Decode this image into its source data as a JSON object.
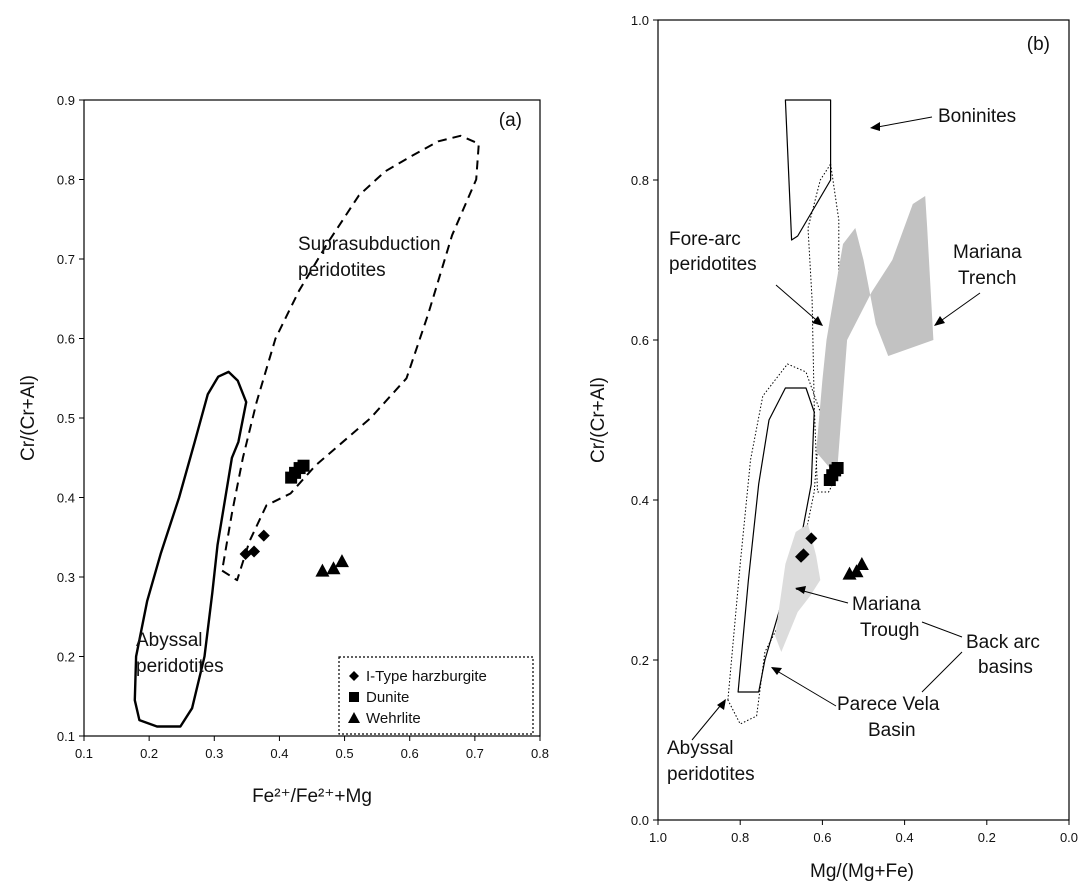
{
  "chart_data": [
    {
      "id": "a",
      "type": "scatter",
      "panel_label": "(a)",
      "xlabel": "Fe²⁺/Fe²⁺+Mg",
      "ylabel": "Cr/(Cr+Al)",
      "xlim": [
        0.1,
        0.8
      ],
      "ylim": [
        0.1,
        0.9
      ],
      "x_ticks": [
        "0.1",
        "0.2",
        "0.3",
        "0.4",
        "0.5",
        "0.6",
        "0.7",
        "0.8"
      ],
      "y_ticks": [
        "0.1",
        "0.2",
        "0.3",
        "0.4",
        "0.5",
        "0.6",
        "0.7",
        "0.8",
        "0.9"
      ],
      "grid": false,
      "legend_position": "bottom-right",
      "series": [
        {
          "name": "I-Type harzburgite",
          "marker": "diamond",
          "points": [
            [
              0.348,
              0.329
            ],
            [
              0.361,
              0.332
            ],
            [
              0.376,
              0.352
            ]
          ]
        },
        {
          "name": "Dunite",
          "marker": "square",
          "points": [
            [
              0.418,
              0.425
            ],
            [
              0.424,
              0.431
            ],
            [
              0.431,
              0.437
            ],
            [
              0.437,
              0.44
            ]
          ]
        },
        {
          "name": "Wehrlite",
          "marker": "triangle",
          "points": [
            [
              0.466,
              0.308
            ],
            [
              0.483,
              0.311
            ],
            [
              0.496,
              0.32
            ]
          ]
        }
      ],
      "fields": [
        {
          "label": "Abyssal peridotites",
          "style": "solid",
          "outline": [
            [
              0.306,
              0.552
            ],
            [
              0.322,
              0.558
            ],
            [
              0.336,
              0.547
            ],
            [
              0.349,
              0.52
            ],
            [
              0.337,
              0.47
            ],
            [
              0.327,
              0.45
            ],
            [
              0.305,
              0.34
            ],
            [
              0.297,
              0.28
            ],
            [
              0.285,
              0.2
            ],
            [
              0.266,
              0.135
            ],
            [
              0.248,
              0.112
            ],
            [
              0.212,
              0.112
            ],
            [
              0.185,
              0.12
            ],
            [
              0.178,
              0.145
            ],
            [
              0.18,
              0.2
            ],
            [
              0.197,
              0.27
            ],
            [
              0.218,
              0.33
            ],
            [
              0.246,
              0.4
            ],
            [
              0.27,
              0.47
            ],
            [
              0.29,
              0.53
            ],
            [
              0.306,
              0.552
            ]
          ]
        },
        {
          "label": "Suprasubduction peridotites",
          "style": "dashed",
          "outline": [
            [
              0.312,
              0.308
            ],
            [
              0.335,
              0.296
            ],
            [
              0.354,
              0.345
            ],
            [
              0.38,
              0.39
            ],
            [
              0.417,
              0.405
            ],
            [
              0.455,
              0.44
            ],
            [
              0.54,
              0.5
            ],
            [
              0.595,
              0.55
            ],
            [
              0.628,
              0.63
            ],
            [
              0.665,
              0.73
            ],
            [
              0.702,
              0.8
            ],
            [
              0.706,
              0.845
            ],
            [
              0.678,
              0.855
            ],
            [
              0.644,
              0.848
            ],
            [
              0.604,
              0.83
            ],
            [
              0.562,
              0.81
            ],
            [
              0.522,
              0.78
            ],
            [
              0.474,
              0.72
            ],
            [
              0.43,
              0.66
            ],
            [
              0.394,
              0.6
            ],
            [
              0.365,
              0.52
            ],
            [
              0.344,
              0.45
            ],
            [
              0.327,
              0.38
            ],
            [
              0.312,
              0.308
            ]
          ]
        }
      ],
      "annotations": [
        "Suprasubduction peridotites",
        "Abyssal peridotites"
      ]
    },
    {
      "id": "b",
      "type": "scatter",
      "panel_label": "(b)",
      "xlabel": "Mg/(Mg+Fe)",
      "ylabel": "Cr/(Cr+Al)",
      "xlim": [
        1.0,
        0.0
      ],
      "ylim": [
        0.0,
        1.0
      ],
      "x_reversed": true,
      "x_ticks": [
        "1.0",
        "0.8",
        "0.6",
        "0.4",
        "0.2",
        "0.0"
      ],
      "y_ticks": [
        "0.0",
        "0.2",
        "0.4",
        "0.6",
        "0.8",
        "1.0"
      ],
      "grid": false,
      "series": [
        {
          "name": "I-Type harzburgite",
          "marker": "diamond",
          "points": [
            [
              0.652,
              0.329
            ],
            [
              0.646,
              0.332
            ],
            [
              0.627,
              0.352
            ]
          ]
        },
        {
          "name": "Dunite",
          "marker": "square",
          "points": [
            [
              0.582,
              0.425
            ],
            [
              0.576,
              0.431
            ],
            [
              0.569,
              0.437
            ],
            [
              0.563,
              0.44
            ]
          ]
        },
        {
          "name": "Wehrlite",
          "marker": "triangle",
          "points": [
            [
              0.534,
              0.308
            ],
            [
              0.517,
              0.311
            ],
            [
              0.504,
              0.32
            ]
          ]
        }
      ],
      "fields": [
        {
          "label": "Boninites",
          "style": "solid",
          "outline": [
            [
              0.69,
              0.9
            ],
            [
              0.58,
              0.9
            ],
            [
              0.58,
              0.8
            ],
            [
              0.66,
              0.73
            ],
            [
              0.675,
              0.725
            ],
            [
              0.69,
              0.9
            ]
          ]
        },
        {
          "label": "Fore-arc peridotites",
          "style": "dotted",
          "outline": [
            [
              0.58,
              0.82
            ],
            [
              0.56,
              0.75
            ],
            [
              0.56,
              0.65
            ],
            [
              0.56,
              0.58
            ],
            [
              0.575,
              0.52
            ],
            [
              0.575,
              0.42
            ],
            [
              0.585,
              0.41
            ],
            [
              0.612,
              0.41
            ],
            [
              0.62,
              0.52
            ],
            [
              0.625,
              0.65
            ],
            [
              0.635,
              0.74
            ],
            [
              0.605,
              0.8
            ],
            [
              0.58,
              0.82
            ]
          ]
        },
        {
          "label": "Abyssal peridotites",
          "style": "dotted",
          "outline": [
            [
              0.83,
              0.15
            ],
            [
              0.8,
              0.32
            ],
            [
              0.775,
              0.45
            ],
            [
              0.745,
              0.53
            ],
            [
              0.685,
              0.57
            ],
            [
              0.64,
              0.56
            ],
            [
              0.605,
              0.51
            ],
            [
              0.62,
              0.41
            ],
            [
              0.66,
              0.31
            ],
            [
              0.7,
              0.25
            ],
            [
              0.74,
              0.21
            ],
            [
              0.76,
              0.13
            ],
            [
              0.8,
              0.12
            ],
            [
              0.83,
              0.15
            ]
          ]
        },
        {
          "label": "Abyssal peridotites (inner)",
          "style": "solid",
          "outline": [
            [
              0.805,
              0.16
            ],
            [
              0.78,
              0.3
            ],
            [
              0.755,
              0.42
            ],
            [
              0.73,
              0.5
            ],
            [
              0.69,
              0.54
            ],
            [
              0.64,
              0.54
            ],
            [
              0.62,
              0.51
            ],
            [
              0.627,
              0.42
            ],
            [
              0.66,
              0.33
            ],
            [
              0.7,
              0.27
            ],
            [
              0.74,
              0.2
            ],
            [
              0.755,
              0.16
            ],
            [
              0.805,
              0.16
            ]
          ]
        },
        {
          "label": "Mariana Trench",
          "style": "filled",
          "color": "#c2c2c2",
          "outline": [
            [
              0.6,
              0.55
            ],
            [
              0.615,
              0.46
            ],
            [
              0.565,
              0.43
            ],
            [
              0.54,
              0.6
            ],
            [
              0.48,
              0.66
            ],
            [
              0.43,
              0.7
            ],
            [
              0.38,
              0.77
            ],
            [
              0.35,
              0.78
            ],
            [
              0.345,
              0.74
            ],
            [
              0.33,
              0.6
            ],
            [
              0.44,
              0.58
            ],
            [
              0.47,
              0.62
            ],
            [
              0.5,
              0.7
            ],
            [
              0.52,
              0.74
            ],
            [
              0.55,
              0.72
            ],
            [
              0.57,
              0.66
            ],
            [
              0.59,
              0.6
            ],
            [
              0.6,
              0.55
            ]
          ]
        },
        {
          "label": "Mariana Trough",
          "style": "filled",
          "color": "#dcdcdc",
          "outline": [
            [
              0.715,
              0.23
            ],
            [
              0.69,
              0.32
            ],
            [
              0.665,
              0.36
            ],
            [
              0.635,
              0.37
            ],
            [
              0.615,
              0.33
            ],
            [
              0.605,
              0.3
            ],
            [
              0.63,
              0.28
            ],
            [
              0.66,
              0.26
            ],
            [
              0.7,
              0.21
            ],
            [
              0.715,
              0.23
            ]
          ]
        }
      ],
      "annotations": [
        "Boninites",
        "Fore-arc peridotites",
        "Mariana Trench",
        "Mariana Trough",
        "Back arc basins",
        "Parece Vela Basin",
        "Abyssal peridotites"
      ]
    }
  ],
  "legend": {
    "items": [
      {
        "label": "I-Type harzburgite",
        "marker": "diamond"
      },
      {
        "label": "Dunite",
        "marker": "square"
      },
      {
        "label": "Wehrlite",
        "marker": "triangle"
      }
    ]
  },
  "labels": {
    "a_supra_1": "Suprasubduction",
    "a_supra_2": "peridotites",
    "a_abyssal_1": "Abyssal",
    "a_abyssal_2": "peridotites",
    "b_boninites": "Boninites",
    "b_forearc_1": "Fore-arc",
    "b_forearc_2": "peridotites",
    "b_trench_1": "Mariana",
    "b_trench_2": "Trench",
    "b_trough_1": "Mariana",
    "b_trough_2": "Trough",
    "b_backarc_1": "Back arc",
    "b_backarc_2": "basins",
    "b_parece_1": "Parece Vela",
    "b_parece_2": "Basin",
    "b_abyssal_1": "Abyssal",
    "b_abyssal_2": "peridotites"
  }
}
